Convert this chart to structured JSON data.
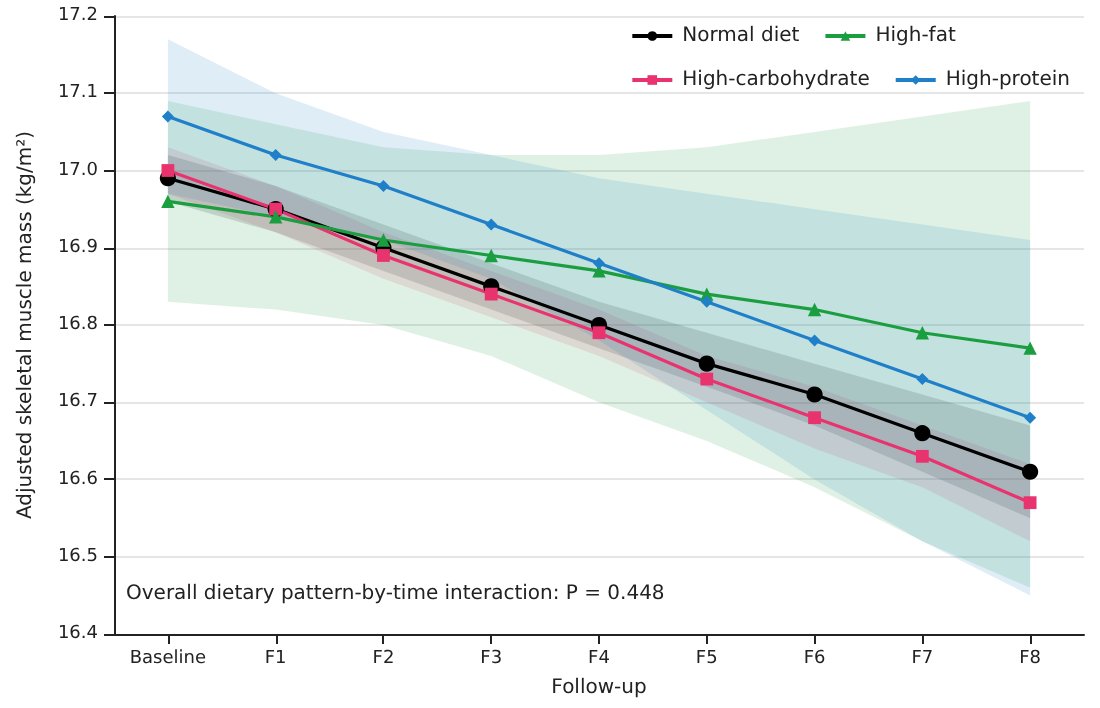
{
  "chart_data": {
    "type": "line",
    "xlabel": "Follow-up",
    "ylabel": "Adjusted skeletal muscle mass (kg/m²)",
    "categories": [
      "Baseline",
      "F1",
      "F2",
      "F3",
      "F4",
      "F5",
      "F6",
      "F7",
      "F8"
    ],
    "ylim": [
      16.4,
      17.2
    ],
    "yticks": [
      16.4,
      16.5,
      16.6,
      16.7,
      16.8,
      16.9,
      {
        "value": 17.0,
        "label": "17.0"
      },
      17.1,
      17.2
    ],
    "grid": "y",
    "legend": "top right",
    "annotations": [
      "Overall dietary pattern-by-time interaction: P = 0.448"
    ],
    "series": [
      {
        "name": "Normal diet",
        "color": "#000000",
        "marker": "circle",
        "values": [
          16.99,
          16.95,
          16.9,
          16.85,
          16.8,
          16.75,
          16.71,
          16.66,
          16.61
        ],
        "lower": [
          16.96,
          16.92,
          16.87,
          16.82,
          16.77,
          16.72,
          16.67,
          16.61,
          16.55
        ],
        "upper": [
          17.02,
          16.98,
          16.93,
          16.88,
          16.83,
          16.79,
          16.75,
          16.71,
          16.67
        ]
      },
      {
        "name": "High-carbohydrate",
        "color": "#e8336f",
        "marker": "square",
        "values": [
          17.0,
          16.95,
          16.89,
          16.84,
          16.79,
          16.73,
          16.68,
          16.63,
          16.57
        ],
        "lower": [
          16.97,
          16.92,
          16.86,
          16.81,
          16.76,
          16.7,
          16.64,
          16.59,
          16.52
        ],
        "upper": [
          17.03,
          16.98,
          16.92,
          16.87,
          16.82,
          16.76,
          16.72,
          16.67,
          16.62
        ]
      },
      {
        "name": "High-fat",
        "color": "#1a9e3f",
        "marker": "triangle",
        "values": [
          16.96,
          16.94,
          16.91,
          16.89,
          16.87,
          16.84,
          16.82,
          16.79,
          16.77
        ],
        "lower": [
          16.83,
          16.82,
          16.8,
          16.76,
          16.7,
          16.65,
          16.59,
          16.52,
          16.46
        ],
        "upper": [
          17.09,
          17.06,
          17.03,
          17.02,
          17.02,
          17.03,
          17.05,
          17.07,
          17.09
        ]
      },
      {
        "name": "High-protein",
        "color": "#1f7fc8",
        "marker": "diamond",
        "values": [
          17.07,
          17.02,
          16.98,
          16.93,
          16.88,
          16.83,
          16.78,
          16.73,
          16.68
        ],
        "lower": [
          16.97,
          16.94,
          16.91,
          16.86,
          16.78,
          16.69,
          16.6,
          16.52,
          16.45
        ],
        "upper": [
          17.17,
          17.1,
          17.05,
          17.02,
          16.99,
          16.97,
          16.95,
          16.93,
          16.91
        ]
      }
    ]
  }
}
